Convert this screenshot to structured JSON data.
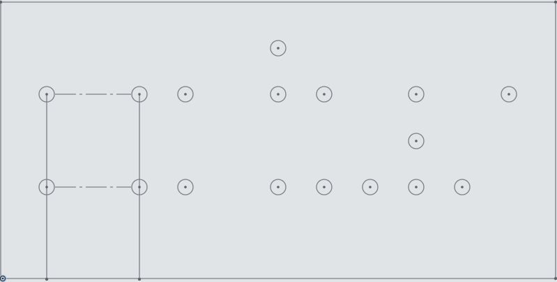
{
  "colors": {
    "canvas_background": "#e1e4e7",
    "line": "#7a7f84",
    "point": "#5f6469",
    "origin_accent": "#9fc3e6"
  },
  "icons": {
    "hole_marker": "circle-with-center-dot-icon",
    "origin": "origin-icon",
    "vertex": "vertex-dot-icon"
  }
}
